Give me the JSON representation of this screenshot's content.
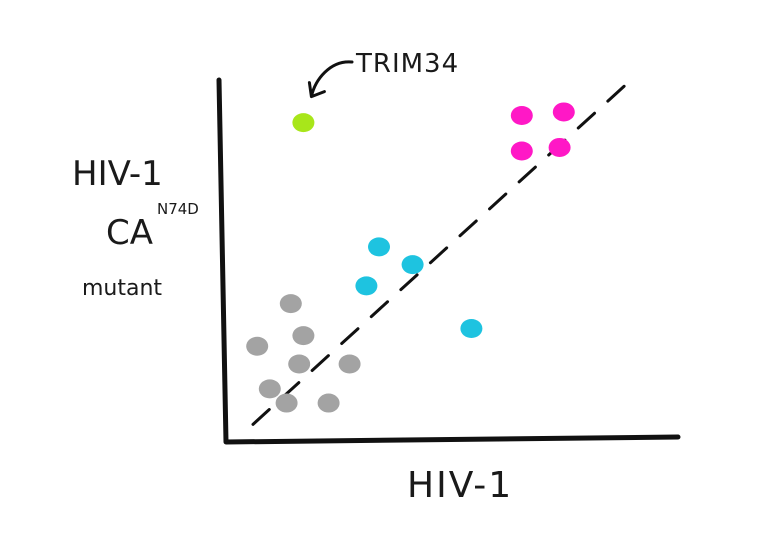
{
  "chart_data": {
    "type": "scatter",
    "title": "",
    "xlabel": "HIV-1",
    "ylabel": {
      "line1": "HIV-1",
      "line2_main": "CA",
      "line2_superscript": "N74D",
      "line3": "mutant"
    },
    "xlim": [
      0,
      100
    ],
    "ylim": [
      0,
      100
    ],
    "grid": false,
    "legend": "none",
    "diagonal_reference": {
      "style": "dashed",
      "from": [
        5,
        3
      ],
      "to": [
        95,
        100
      ]
    },
    "series": [
      {
        "color": "#a3a3a3",
        "points": [
          {
            "x": 14,
            "y": 37
          },
          {
            "x": 17,
            "y": 28
          },
          {
            "x": 6,
            "y": 25
          },
          {
            "x": 16,
            "y": 20
          },
          {
            "x": 28,
            "y": 20
          },
          {
            "x": 9,
            "y": 13
          },
          {
            "x": 13,
            "y": 9
          },
          {
            "x": 23,
            "y": 9
          }
        ]
      },
      {
        "color": "#1ec3e0",
        "points": [
          {
            "x": 35,
            "y": 53
          },
          {
            "x": 43,
            "y": 48
          },
          {
            "x": 32,
            "y": 42
          },
          {
            "x": 57,
            "y": 30
          }
        ]
      },
      {
        "color": "#ff18c6",
        "points": [
          {
            "x": 69,
            "y": 90
          },
          {
            "x": 79,
            "y": 91
          },
          {
            "x": 69,
            "y": 80
          },
          {
            "x": 78,
            "y": 81
          }
        ]
      },
      {
        "color": "#a8e61a",
        "points": [
          {
            "x": 17,
            "y": 88
          }
        ]
      }
    ],
    "annotations": [
      {
        "text": "TRIM34",
        "x": 17,
        "y": 88
      }
    ]
  }
}
